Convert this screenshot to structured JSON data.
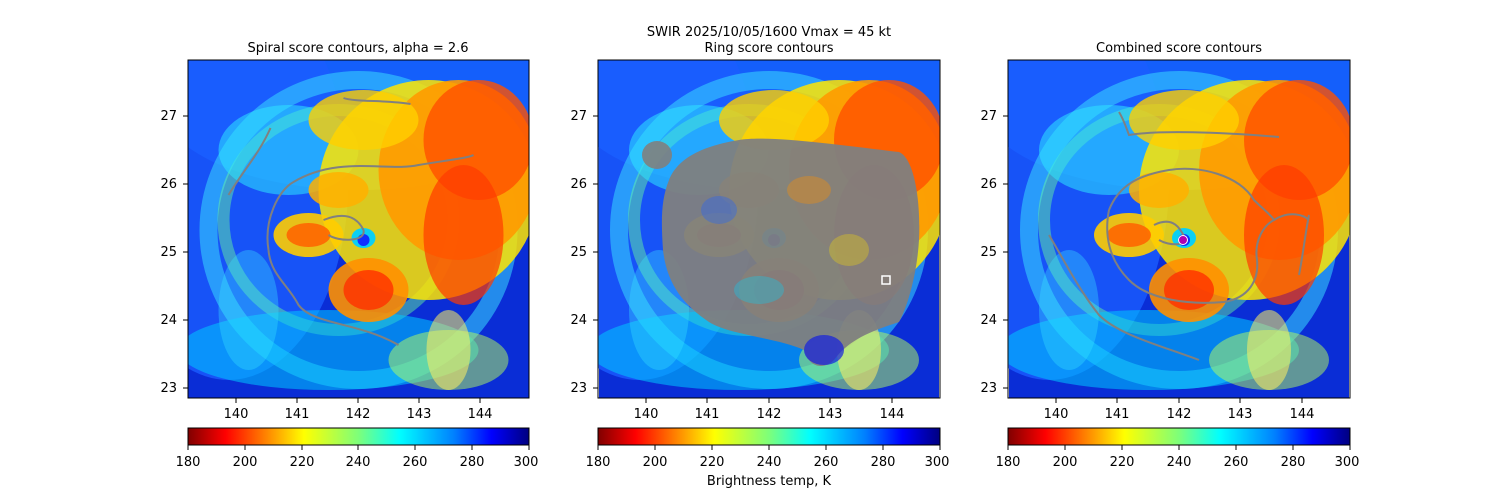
{
  "figure": {
    "suptitle": "SWIR  2025/10/05/1600    Vmax = 45 kt",
    "colorbar_label": "Brightness temp, K"
  },
  "chart_data": [
    {
      "type": "heatmap",
      "title": "Spiral score contours, alpha =  2.6",
      "x_ticks": [
        140,
        141,
        142,
        143,
        144
      ],
      "y_ticks": [
        23,
        24,
        25,
        26,
        27
      ],
      "xlim": [
        139.2,
        144.8
      ],
      "ylim": [
        22.8,
        27.8
      ],
      "colorbar": {
        "range": [
          180,
          300
        ],
        "ticks": [
          180,
          200,
          220,
          240,
          260,
          280,
          300
        ],
        "cmap": "jet_r"
      },
      "overlay": "spiral contours (gray)"
    },
    {
      "type": "heatmap",
      "title": "Ring score contours",
      "x_ticks": [
        140,
        141,
        142,
        143,
        144
      ],
      "y_ticks": [
        23,
        24,
        25,
        26,
        27
      ],
      "xlim": [
        139.2,
        144.8
      ],
      "ylim": [
        22.8,
        27.8
      ],
      "colorbar": {
        "range": [
          180,
          300
        ],
        "ticks": [
          180,
          200,
          220,
          240,
          260,
          280,
          300
        ],
        "cmap": "jet_r"
      },
      "overlay": "ring score contours (gray), max marked with square",
      "marker": {
        "shape": "square",
        "lon": 143.9,
        "lat": 24.55
      }
    },
    {
      "type": "heatmap",
      "title": "Combined score contours",
      "x_ticks": [
        140,
        141,
        142,
        143,
        144
      ],
      "y_ticks": [
        23,
        24,
        25,
        26,
        27
      ],
      "xlim": [
        139.2,
        144.8
      ],
      "ylim": [
        22.8,
        27.8
      ],
      "colorbar": {
        "range": [
          180,
          300
        ],
        "ticks": [
          180,
          200,
          220,
          240,
          260,
          280,
          300
        ],
        "cmap": "jet_r"
      },
      "overlay": "combined score contours (gray), center marked with dot",
      "marker": {
        "shape": "circle",
        "lon": 142.05,
        "lat": 25.15
      }
    }
  ],
  "colors": {
    "contour": "#808080",
    "jet_r": [
      "#800000",
      "#ff0000",
      "#ff8000",
      "#ffff00",
      "#80ff80",
      "#00ffff",
      "#0080ff",
      "#0000ff",
      "#000080"
    ]
  }
}
